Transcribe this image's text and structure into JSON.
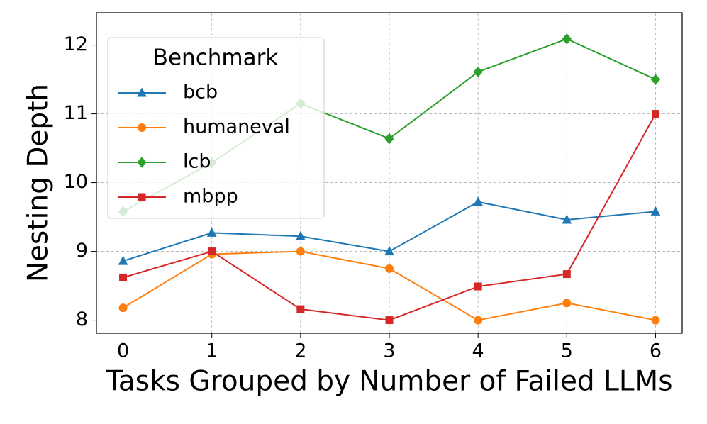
{
  "chart_data": {
    "type": "line",
    "xlabel": "Tasks Grouped by Number of Failed LLMs",
    "ylabel": "Nesting Depth",
    "legend_title": "Benchmark",
    "legend_loc": "upper left",
    "grid": true,
    "x": [
      0,
      1,
      2,
      3,
      4,
      5,
      6
    ],
    "xlim": [
      -0.3,
      6.3
    ],
    "xticks": [
      0,
      1,
      2,
      3,
      4,
      5,
      6
    ],
    "ylim": [
      7.81,
      12.47
    ],
    "yticks": [
      8,
      9,
      10,
      11,
      12
    ],
    "series": [
      {
        "name": "bcb",
        "color": "#1f77b4",
        "marker": "triangle",
        "values": [
          8.86,
          9.27,
          9.22,
          9.0,
          9.72,
          9.46,
          9.58
        ]
      },
      {
        "name": "humaneval",
        "color": "#ff7f0e",
        "marker": "circle",
        "values": [
          8.18,
          8.96,
          9.0,
          8.75,
          8.0,
          8.25,
          8.0
        ]
      },
      {
        "name": "lcb",
        "color": "#2ca02c",
        "marker": "diamond",
        "values": [
          9.58,
          10.29,
          11.15,
          10.64,
          11.61,
          12.09,
          11.5
        ]
      },
      {
        "name": "mbpp",
        "color": "#d62728",
        "marker": "square",
        "values": [
          8.62,
          9.0,
          8.16,
          8.0,
          8.49,
          8.67,
          11.0
        ]
      }
    ]
  }
}
